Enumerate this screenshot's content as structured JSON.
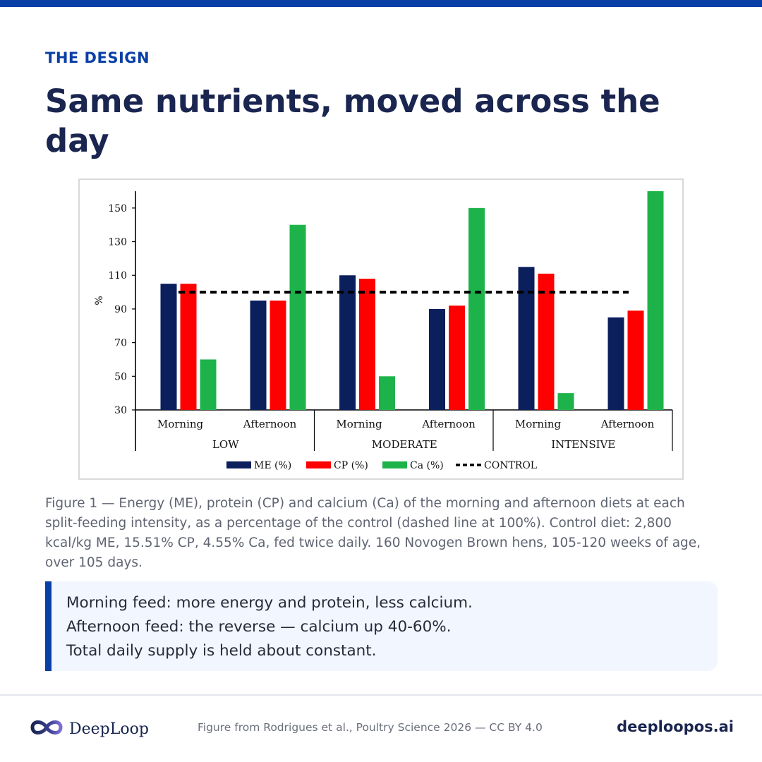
{
  "header": {
    "eyebrow": "THE DESIGN",
    "title": "Same nutrients, moved across the day"
  },
  "chart_data": {
    "type": "bar",
    "ylabel": "%",
    "ylim": [
      30,
      160
    ],
    "yticks": [
      30,
      50,
      70,
      90,
      110,
      130,
      150
    ],
    "groups": [
      {
        "label": "LOW",
        "categories": [
          "Morning",
          "Afternoon"
        ]
      },
      {
        "label": "MODERATE",
        "categories": [
          "Morning",
          "Afternoon"
        ]
      },
      {
        "label": "INTENSIVE",
        "categories": [
          "Morning",
          "Afternoon"
        ]
      }
    ],
    "series": [
      {
        "name": "ME (%)",
        "color": "#0b1f5c",
        "values": [
          105,
          95,
          110,
          90,
          115,
          85
        ]
      },
      {
        "name": "CP (%)",
        "color": "#ff0000",
        "values": [
          105,
          95,
          108,
          92,
          111,
          89
        ]
      },
      {
        "name": "Ca (%)",
        "color": "#1db34a",
        "values": [
          60,
          140,
          50,
          150,
          40,
          160
        ]
      }
    ],
    "reference_line": {
      "name": "CONTROL",
      "value": 100,
      "style": "dashed",
      "color": "#000000"
    },
    "legend": "bottom",
    "grid": false
  },
  "caption": "Figure 1 — Energy (ME), protein (CP) and calcium (Ca) of the morning and afternoon diets at each split-feeding intensity, as a percentage of the control (dashed line at 100%). Control diet: 2,800 kcal/kg ME, 15.51% CP, 4.55% Ca, fed twice daily. 160 Novogen Brown hens, 105-120 weeks of age, over 105 days.",
  "callout": {
    "lines": [
      "Morning feed: more energy and protein, less calcium.",
      "Afternoon feed: the reverse — calcium up 40-60%.",
      "Total daily supply is held about constant."
    ]
  },
  "footer": {
    "brand_name": "DeepLoop",
    "logo_icon": "infinity-loop-icon",
    "credit": "Figure from Rodrigues et al., Poultry Science 2026 — CC BY 4.0",
    "site": "deeploopos.ai"
  }
}
